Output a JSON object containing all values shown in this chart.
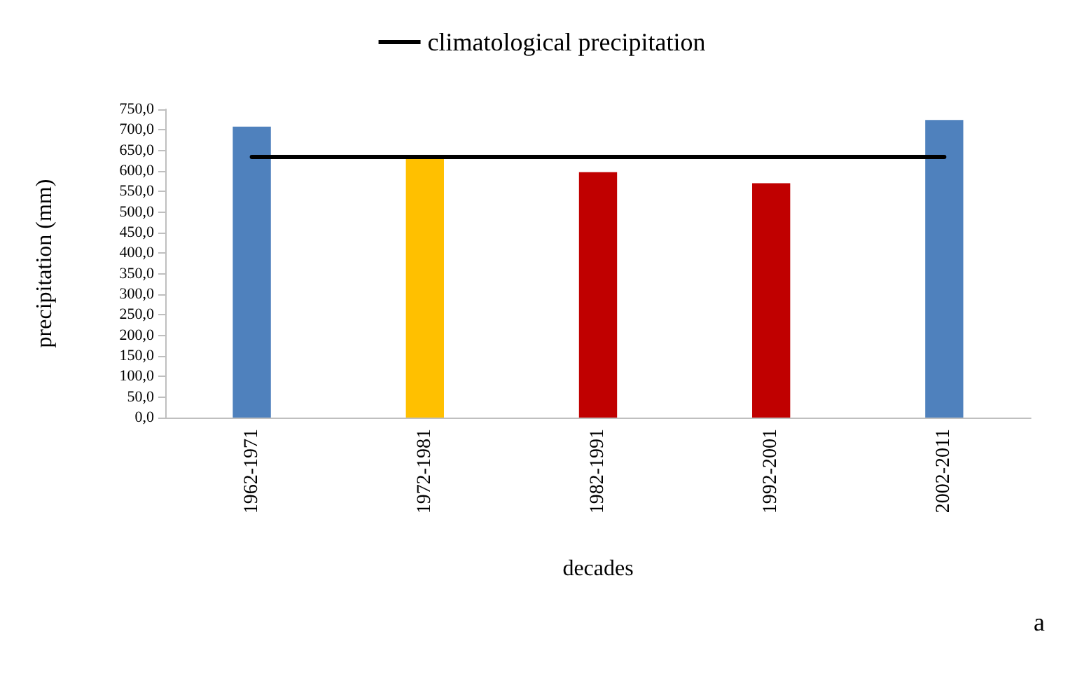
{
  "chart_data": {
    "type": "bar",
    "xlabel": "decades",
    "ylabel": "precipitation (mm)",
    "categories": [
      "1962-1971",
      "1972-1981",
      "1982-1991",
      "1992-2001",
      "2002-2011"
    ],
    "series": [
      {
        "colors": [
          "#4f81bd",
          "#ffc000",
          "#c00000",
          "#c00000",
          "#4f81bd"
        ],
        "values": [
          708,
          630,
          597,
          570,
          724
        ]
      },
      {
        "type": "line",
        "name": "climatological precipitation",
        "color": "#000000",
        "marker": "none",
        "values": [
          634,
          634,
          634,
          634,
          634
        ]
      }
    ],
    "ylim": [
      0,
      750
    ],
    "yticks": [
      {
        "value": 0,
        "label": "0,0"
      },
      {
        "value": 50,
        "label": "50,0"
      },
      {
        "value": 100,
        "label": "100,0"
      },
      {
        "value": 150,
        "label": "150,0"
      },
      {
        "value": 200,
        "label": "200,0"
      },
      {
        "value": 250,
        "label": "250,0"
      },
      {
        "value": 300,
        "label": "300,0"
      },
      {
        "value": 350,
        "label": "350,0"
      },
      {
        "value": 400,
        "label": "400,0"
      },
      {
        "value": 450,
        "label": "450,0"
      },
      {
        "value": 500,
        "label": "500,0"
      },
      {
        "value": 550,
        "label": "550,0"
      },
      {
        "value": 600,
        "label": "600,0"
      },
      {
        "value": 650,
        "label": "650,0"
      },
      {
        "value": 700,
        "label": "700,0"
      },
      {
        "value": 750,
        "label": "750,0"
      }
    ],
    "grid": false,
    "legend": "top",
    "annotations": [
      "a"
    ]
  }
}
